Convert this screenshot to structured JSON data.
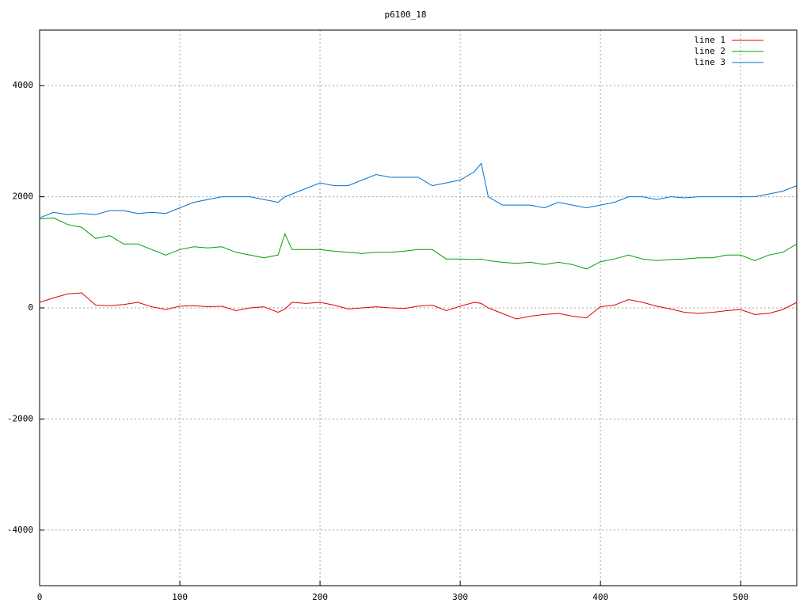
{
  "chart_data": {
    "type": "line",
    "title": "p6100_18",
    "x": [
      0,
      10,
      20,
      30,
      40,
      50,
      60,
      70,
      80,
      90,
      100,
      110,
      120,
      130,
      140,
      150,
      160,
      170,
      175,
      180,
      190,
      200,
      210,
      220,
      230,
      240,
      250,
      260,
      270,
      280,
      290,
      300,
      310,
      315,
      320,
      330,
      340,
      350,
      360,
      370,
      380,
      390,
      400,
      410,
      420,
      430,
      440,
      450,
      460,
      470,
      480,
      490,
      500,
      510,
      520,
      530,
      540
    ],
    "series": [
      {
        "name": "line 1",
        "color": "#e00000",
        "values": [
          100,
          180,
          250,
          270,
          50,
          40,
          60,
          100,
          20,
          -30,
          30,
          40,
          20,
          30,
          -50,
          0,
          20,
          -80,
          -20,
          100,
          80,
          100,
          50,
          -20,
          0,
          20,
          0,
          -10,
          30,
          50,
          -50,
          30,
          100,
          80,
          0,
          -100,
          -200,
          -150,
          -120,
          -100,
          -150,
          -180,
          20,
          50,
          150,
          100,
          30,
          -20,
          -80,
          -100,
          -80,
          -50,
          -30,
          -120,
          -100,
          -30,
          100
        ]
      },
      {
        "name": "line 2",
        "color": "#00a000",
        "values": [
          1600,
          1620,
          1500,
          1450,
          1250,
          1300,
          1150,
          1150,
          1050,
          950,
          1050,
          1100,
          1080,
          1100,
          1000,
          950,
          900,
          950,
          1330,
          1050,
          1050,
          1050,
          1020,
          1000,
          980,
          1000,
          1000,
          1020,
          1050,
          1050,
          880,
          880,
          870,
          880,
          850,
          820,
          800,
          820,
          780,
          820,
          780,
          700,
          830,
          880,
          950,
          880,
          850,
          870,
          880,
          900,
          900,
          950,
          950,
          850,
          950,
          1000,
          1150
        ]
      },
      {
        "name": "line 3",
        "color": "#0070d0",
        "values": [
          1620,
          1720,
          1680,
          1700,
          1680,
          1750,
          1750,
          1700,
          1720,
          1700,
          1800,
          1900,
          1950,
          2000,
          2000,
          2000,
          1950,
          1900,
          2000,
          2050,
          2150,
          2250,
          2200,
          2200,
          2300,
          2400,
          2350,
          2350,
          2350,
          2200,
          2250,
          2300,
          2450,
          2600,
          2000,
          1850,
          1850,
          1850,
          1800,
          1900,
          1850,
          1800,
          1850,
          1900,
          2000,
          2000,
          1950,
          2000,
          1980,
          2000,
          2000,
          2000,
          2000,
          2000,
          2050,
          2100,
          2200
        ]
      }
    ],
    "xlim": [
      0,
      540
    ],
    "ylim": [
      -5000,
      5000
    ],
    "xticks": [
      0,
      100,
      200,
      300,
      400,
      500
    ],
    "yticks": [
      -4000,
      -2000,
      0,
      2000,
      4000
    ],
    "grid": true,
    "legend": "top-right"
  }
}
